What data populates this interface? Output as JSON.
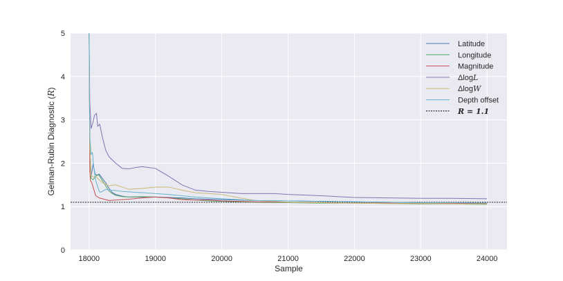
{
  "chart_data": {
    "type": "line",
    "xlabel": "Sample",
    "ylabel": "Gelman-Rubin Diagnostic (R)",
    "xlim": [
      17720,
      24300
    ],
    "ylim": [
      0,
      5
    ],
    "xticks": [
      18000,
      19000,
      20000,
      21000,
      22000,
      23000,
      24000
    ],
    "xtick_labels": [
      "18000",
      "19000",
      "20000",
      "21000",
      "22000",
      "23000",
      "24000"
    ],
    "yticks": [
      0,
      1,
      2,
      3,
      4,
      5
    ],
    "ytick_labels": [
      "0",
      "1",
      "2",
      "3",
      "4",
      "5"
    ],
    "grid": true,
    "legend_position": "top-right",
    "reference_line": {
      "y": 1.1,
      "label": "R = 1.1",
      "color": "#000000",
      "style": "dashed"
    },
    "series": [
      {
        "name": "Latitude",
        "color": "#4c72b0",
        "x": [
          18000,
          18010,
          18030,
          18060,
          18090,
          18120,
          18150,
          18200,
          18250,
          18300,
          18350,
          18400,
          18500,
          18600,
          18800,
          19000,
          19200,
          19400,
          19600,
          19800,
          20000,
          20500,
          21000,
          21500,
          22000,
          22500,
          23000,
          23500,
          24000
        ],
        "values": [
          5.0,
          2.4,
          1.7,
          1.98,
          1.75,
          1.72,
          1.75,
          1.65,
          1.55,
          1.42,
          1.32,
          1.28,
          1.24,
          1.22,
          1.22,
          1.22,
          1.21,
          1.2,
          1.18,
          1.17,
          1.16,
          1.14,
          1.13,
          1.12,
          1.11,
          1.1,
          1.09,
          1.09,
          1.08
        ]
      },
      {
        "name": "Longitude",
        "color": "#55a868",
        "x": [
          18000,
          18010,
          18030,
          18060,
          18090,
          18120,
          18150,
          18200,
          18250,
          18300,
          18350,
          18400,
          18500,
          18600,
          18800,
          19000,
          19200,
          19400,
          19600,
          19800,
          20000,
          20500,
          21000,
          21500,
          22000,
          22500,
          23000,
          23500,
          24000
        ],
        "values": [
          5.0,
          2.2,
          1.65,
          1.62,
          1.68,
          1.73,
          1.72,
          1.6,
          1.48,
          1.36,
          1.3,
          1.26,
          1.23,
          1.22,
          1.23,
          1.22,
          1.2,
          1.18,
          1.15,
          1.13,
          1.12,
          1.1,
          1.09,
          1.08,
          1.08,
          1.07,
          1.06,
          1.06,
          1.05
        ]
      },
      {
        "name": "Magnitude",
        "color": "#c44e52",
        "x": [
          18000,
          18010,
          18020,
          18040,
          18060,
          18100,
          18150,
          18200,
          18300,
          18400,
          18600,
          18800,
          19000,
          19200,
          19400,
          19600,
          19800,
          20000,
          20500,
          21000,
          21500,
          22000,
          22500,
          23000,
          23500,
          24000
        ],
        "values": [
          5.0,
          1.8,
          1.6,
          1.55,
          1.45,
          1.25,
          1.2,
          1.18,
          1.14,
          1.15,
          1.17,
          1.2,
          1.22,
          1.2,
          1.16,
          1.15,
          1.15,
          1.13,
          1.11,
          1.1,
          1.09,
          1.08,
          1.08,
          1.07,
          1.07,
          1.07
        ]
      },
      {
        "name": "ΔlogL",
        "color": "#8172b2",
        "x": [
          18000,
          18010,
          18030,
          18060,
          18080,
          18110,
          18130,
          18160,
          18200,
          18250,
          18300,
          18400,
          18500,
          18600,
          18700,
          18800,
          19000,
          19200,
          19400,
          19600,
          19800,
          20000,
          20300,
          20600,
          20800,
          21000,
          21500,
          22000,
          22500,
          23000,
          23500,
          24000
        ],
        "values": [
          5.0,
          3.4,
          2.8,
          2.95,
          3.1,
          3.15,
          2.85,
          2.9,
          2.6,
          2.3,
          2.15,
          2.0,
          1.88,
          1.87,
          1.9,
          1.92,
          1.88,
          1.7,
          1.5,
          1.38,
          1.35,
          1.33,
          1.3,
          1.3,
          1.3,
          1.28,
          1.25,
          1.21,
          1.2,
          1.19,
          1.19,
          1.18
        ]
      },
      {
        "name": "ΔlogW",
        "color": "#ccb974",
        "x": [
          18000,
          18010,
          18030,
          18060,
          18100,
          18150,
          18200,
          18300,
          18400,
          18500,
          18600,
          18800,
          19000,
          19200,
          19400,
          19600,
          19800,
          20000,
          20200,
          20500,
          21000,
          21500,
          22000,
          22500,
          23000,
          23500,
          24000
        ],
        "values": [
          5.0,
          2.4,
          1.72,
          1.68,
          1.7,
          1.62,
          1.55,
          1.48,
          1.5,
          1.45,
          1.4,
          1.42,
          1.45,
          1.45,
          1.38,
          1.32,
          1.3,
          1.28,
          1.22,
          1.14,
          1.1,
          1.09,
          1.08,
          1.07,
          1.07,
          1.06,
          1.06
        ]
      },
      {
        "name": "Depth offset",
        "color": "#64b5cd",
        "x": [
          18000,
          18010,
          18030,
          18050,
          18070,
          18100,
          18130,
          18160,
          18200,
          18250,
          18300,
          18400,
          18500,
          18700,
          19000,
          19200,
          19400,
          19600,
          20000,
          20500,
          21000,
          21500,
          22000,
          22500,
          23000,
          23500,
          24000
        ],
        "values": [
          5.0,
          2.6,
          2.2,
          2.25,
          1.9,
          1.6,
          1.45,
          1.33,
          1.35,
          1.4,
          1.38,
          1.37,
          1.35,
          1.33,
          1.3,
          1.28,
          1.25,
          1.22,
          1.18,
          1.14,
          1.13,
          1.12,
          1.11,
          1.1,
          1.09,
          1.09,
          1.08
        ]
      }
    ]
  }
}
